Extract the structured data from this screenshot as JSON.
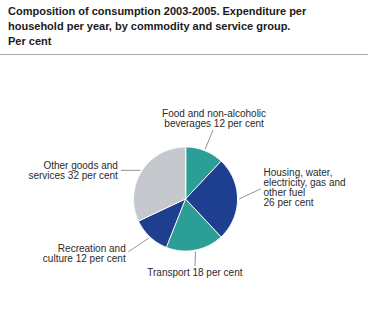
{
  "chart_data": {
    "type": "pie",
    "title": "Composition of consumption 2003-2005. Expenditure per\nhousehold per year, by commodity and service group.\nPer cent",
    "categories": [
      "Food and non-alcoholic\nbeverages 12 per cent",
      "Housing, water,\nelectricity, gas and\nother fuel\n26 per cent",
      "Transport 18 per cent",
      "Recreation and\nculture 12 per cent",
      "Other goods and\nservices 32 per cent"
    ],
    "values": [
      12,
      26,
      18,
      12,
      32
    ],
    "colors": [
      "#2b9e96",
      "#1e3f8f",
      "#2b9e96",
      "#1e3f8f",
      "#c5c8cc"
    ]
  }
}
